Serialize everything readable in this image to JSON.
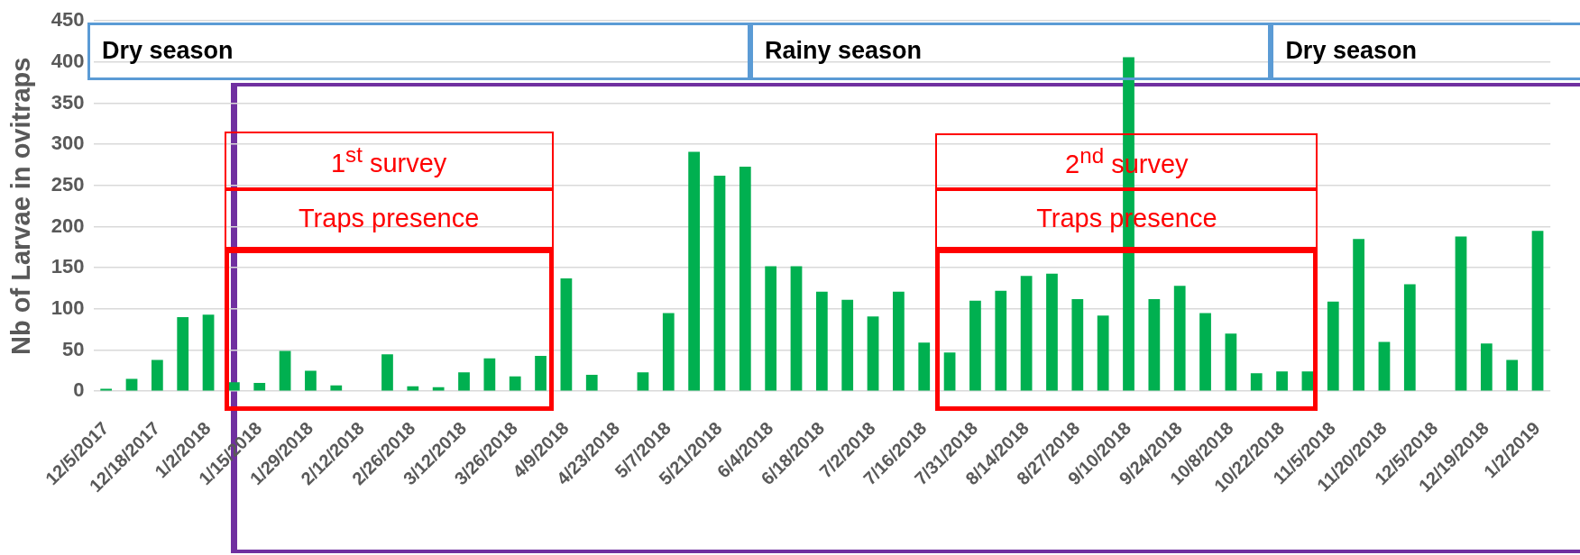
{
  "chart_data": {
    "type": "bar",
    "ylabel": "Nb of Larvae in ovitraps",
    "categories": [
      "12/5/2017",
      null,
      "12/18/2017",
      null,
      "1/2/2018",
      null,
      "1/15/2018",
      null,
      "1/29/2018",
      null,
      "2/12/2018",
      null,
      "2/26/2018",
      null,
      "3/12/2018",
      null,
      "3/26/2018",
      null,
      "4/9/2018",
      null,
      "4/23/2018",
      null,
      "5/7/2018",
      null,
      "5/21/2018",
      null,
      "6/4/2018",
      null,
      "6/18/2018",
      null,
      "7/2/2018",
      null,
      "7/16/2018",
      null,
      "7/31/2018",
      null,
      "8/14/2018",
      null,
      "8/27/2018",
      null,
      "9/10/2018",
      null,
      "9/24/2018",
      null,
      "10/8/2018",
      null,
      "10/22/2018",
      null,
      "11/5/2018",
      null,
      "11/20/2018",
      null,
      "12/5/2018",
      null,
      "12/19/2018",
      null,
      "1/2/2019"
    ],
    "values": [
      3,
      15,
      38,
      90,
      93,
      11,
      10,
      49,
      25,
      7,
      0,
      45,
      6,
      5,
      23,
      40,
      18,
      43,
      137,
      20,
      0,
      23,
      95,
      291,
      262,
      273,
      152,
      152,
      121,
      111,
      91,
      121,
      59,
      47,
      110,
      122,
      140,
      143,
      112,
      92,
      406,
      112,
      128,
      95,
      70,
      22,
      24,
      24,
      109,
      185,
      60,
      130,
      0,
      188,
      58,
      38,
      195
    ],
    "color": "#00b050",
    "ylim": [
      0,
      450
    ],
    "yticks": [
      0,
      50,
      100,
      150,
      200,
      250,
      300,
      350,
      400,
      450
    ],
    "grid": "y",
    "annotations": [
      "Dry season",
      "Rainy season",
      "Dry season",
      "1$^{st}$ survey",
      "Traps presence",
      "2$^{nd}$ survey",
      "Traps presence"
    ]
  }
}
